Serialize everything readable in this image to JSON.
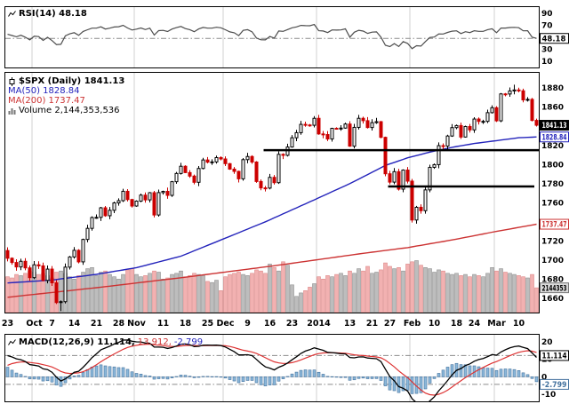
{
  "legends": {
    "rsi": "RSI(14) 48.18",
    "spx": "$SPX (Daily) 1841.13",
    "ma50": "MA(50) 1828.84",
    "ma200": "MA(200) 1737.47",
    "volume": "Volume 2,144,353,536",
    "macd_main": "MACD(12,26,9) 11.114,",
    "macd_signal": "13.912,",
    "macd_hist": "-2.799"
  },
  "icons": {
    "rsi_legend": "line-indicator-icon",
    "price_legend": "candlestick-icon",
    "volume_legend": "volume-bars-icon",
    "macd_legend": "line-indicator-icon"
  },
  "colors": {
    "up_candle": "#000000",
    "down_candle": "#cc0000",
    "ma50": "#2323bb",
    "ma200": "#cc3333",
    "vol_up": "#bdbdbd",
    "vol_up_edge": "#909090",
    "vol_down": "#f2b1b1",
    "vol_down_edge": "#dd8888",
    "hist_fill": "#8cb8da",
    "hist_stroke": "#44729e",
    "macd_line": "#000000",
    "signal_line": "#dd3333",
    "rsi_line": "#4d4d4d",
    "grid": "#d2d2d2",
    "dash": "#8c8c8c"
  },
  "axis_boxes": {
    "rsi": [
      {
        "value": 48.18,
        "label": "48.18",
        "style": "plain"
      }
    ],
    "price": [
      {
        "value": 1841.13,
        "label": "1841.13",
        "style": "dark"
      },
      {
        "value": 1828.84,
        "label": "1828.84",
        "style": "blue"
      },
      {
        "value": 1737.47,
        "label": "1737.47",
        "style": "red"
      }
    ],
    "volume": {
      "label": "2144353",
      "billions": 2.144,
      "style": "gray"
    },
    "macd": [
      {
        "value": 11.114,
        "label": "11.114",
        "style": "plain",
        "dy": -2
      },
      {
        "value": -2.799,
        "label": "-2.799",
        "style": "histblue",
        "dy": 3
      }
    ]
  },
  "chart_data": {
    "type": "candlestick",
    "symbol": "$SPX",
    "timeframe": "Daily",
    "panels": [
      "RSI(14)",
      "price+MA50+MA200+volume",
      "MACD(12,26,9)"
    ],
    "last_values": {
      "close": 1841.13,
      "ma50": 1828.84,
      "ma200": 1737.47,
      "volume": 2144353536,
      "rsi14": 48.18,
      "macd_line": 11.114,
      "macd_signal": 13.912,
      "macd_hist": -2.799
    },
    "price_ticks": [
      1880,
      1860,
      1820,
      1800,
      1780,
      1760,
      1720,
      1700,
      1680,
      1660
    ],
    "price_ylim": [
      1645,
      1896
    ],
    "rsi_ticks": [
      90,
      70,
      50,
      30,
      10
    ],
    "rsi_ylim": [
      0,
      100
    ],
    "macd_ticks": [
      20,
      10,
      0,
      -10
    ],
    "macd_ylim": [
      -14,
      24
    ],
    "x_ticks": [
      {
        "i": 0,
        "label": "23"
      },
      {
        "i": 6,
        "label": "Oct",
        "bold": true
      },
      {
        "i": 10,
        "label": "7"
      },
      {
        "i": 15,
        "label": "14"
      },
      {
        "i": 20,
        "label": "21"
      },
      {
        "i": 25,
        "label": "28"
      },
      {
        "i": 29,
        "label": "Nov",
        "bold": true
      },
      {
        "i": 35,
        "label": "11"
      },
      {
        "i": 40,
        "label": "18"
      },
      {
        "i": 45,
        "label": "25"
      },
      {
        "i": 49,
        "label": "Dec",
        "bold": true
      },
      {
        "i": 54,
        "label": "9"
      },
      {
        "i": 59,
        "label": "16"
      },
      {
        "i": 64,
        "label": "23"
      },
      {
        "i": 70,
        "label": "2014",
        "bold": true
      },
      {
        "i": 77,
        "label": "13"
      },
      {
        "i": 82,
        "label": "21"
      },
      {
        "i": 86,
        "label": "27"
      },
      {
        "i": 91,
        "label": "Feb",
        "bold": true
      },
      {
        "i": 96,
        "label": "10"
      },
      {
        "i": 101,
        "label": "18"
      },
      {
        "i": 105,
        "label": "24"
      },
      {
        "i": 110,
        "label": "Mar",
        "bold": true
      },
      {
        "i": 115,
        "label": "10"
      }
    ],
    "month_gridlines": [
      6,
      29,
      49,
      70,
      91,
      110
    ],
    "trendlines": [
      {
        "price": 1815,
        "i1": 58,
        "i2": 121
      },
      {
        "price": 1777,
        "i1": 86,
        "i2": 118.5
      }
    ],
    "warmup_closes": [
      1689.47,
      1694.16,
      1685.39,
      1661.32,
      1655.83,
      1646.06,
      1652.35,
      1642.8,
      1656.96,
      1663.5,
      1656.78,
      1630.48,
      1634.96,
      1638.17,
      1632.97,
      1639.77,
      1653.08,
      1655.08,
      1655.17,
      1671.71,
      1683.99,
      1689.13,
      1683.42,
      1687.99,
      1697.6,
      1704.76,
      1725.52,
      1722.34,
      1709.91
    ],
    "closes": [
      1701.84,
      1697.42,
      1692.77,
      1698.67,
      1691.75,
      1681.55,
      1695,
      1693.87,
      1678.66,
      1690.5,
      1676.12,
      1655.45,
      1656.4,
      1692.56,
      1703.2,
      1710.14,
      1698.06,
      1721.54,
      1733.15,
      1744.5,
      1744.66,
      1754.67,
      1746.38,
      1752.07,
      1759.77,
      1762.11,
      1771.95,
      1763.31,
      1756.54,
      1761.64,
      1767.93,
      1762.97,
      1770.49,
      1747.15,
      1770.61,
      1771.89,
      1767.69,
      1782,
      1790.62,
      1798.18,
      1791.53,
      1787.87,
      1781.37,
      1795.85,
      1804.76,
      1802.48,
      1802.75,
      1807.23,
      1805.81,
      1800.9,
      1795.15,
      1792.81,
      1785.03,
      1805.09,
      1808.37,
      1802.62,
      1782.22,
      1775.5,
      1775.32,
      1786.54,
      1781,
      1810.65,
      1809.6,
      1818.32,
      1827.99,
      1833.32,
      1842.02,
      1841.4,
      1841.07,
      1848.36,
      1831.98,
      1831.37,
      1826.77,
      1837.88,
      1837.49,
      1838.13,
      1842.37,
      1819.2,
      1838.88,
      1848.38,
      1845.89,
      1838.7,
      1843.8,
      1844.86,
      1828.46,
      1790.29,
      1781.56,
      1792.5,
      1774.2,
      1794.19,
      1782.59,
      1741.89,
      1755.2,
      1751.64,
      1773.43,
      1797.02,
      1799.84,
      1819.75,
      1819.26,
      1829.83,
      1838.63,
      1840.76,
      1828.75,
      1839.78,
      1836.25,
      1847.61,
      1845.12,
      1845.16,
      1854.29,
      1859.45,
      1845.73,
      1873.91,
      1873.81,
      1877.03,
      1878.04,
      1877.17,
      1867.63,
      1868.2,
      1846.16,
      1841.13
    ],
    "volumes_billions": [
      3.1,
      3.0,
      3.3,
      3.2,
      3.4,
      3.6,
      3.5,
      3.3,
      3.4,
      3.2,
      3.0,
      3.5,
      3.6,
      3.4,
      3.1,
      2.9,
      3.2,
      3.5,
      3.8,
      3.9,
      3.2,
      3.5,
      3.6,
      3.3,
      3.1,
      2.9,
      3.3,
      3.7,
      3.8,
      3.3,
      3.1,
      3.2,
      3.4,
      3.6,
      3.5,
      2.9,
      3.0,
      3.3,
      3.4,
      3.6,
      3.1,
      3.2,
      3.4,
      3.3,
      3.2,
      2.7,
      2.6,
      2.8,
      1.9,
      3.1,
      3.3,
      3.4,
      3.5,
      3.3,
      3.2,
      3.4,
      3.7,
      3.6,
      3.4,
      4.2,
      3.9,
      3.6,
      4.4,
      4.1,
      2.4,
      1.4,
      1.7,
      1.9,
      2.2,
      2.5,
      3.1,
      2.9,
      3.2,
      3.1,
      3.3,
      3.4,
      3.2,
      3.6,
      3.4,
      3.8,
      3.6,
      4.0,
      3.4,
      3.5,
      3.7,
      4.3,
      4.0,
      3.8,
      3.9,
      3.6,
      4.2,
      4.4,
      4.5,
      4.1,
      3.9,
      3.8,
      3.5,
      3.7,
      3.6,
      3.4,
      3.3,
      3.4,
      3.2,
      3.3,
      3.1,
      3.3,
      3.2,
      3.1,
      3.4,
      3.9,
      3.6,
      3.8,
      3.5,
      3.4,
      3.3,
      3.2,
      3.1,
      3.0,
      3.3,
      2.144
    ],
    "low_overrides": {
      "12": 1646.47,
      "91": 1739.27
    },
    "high_overrides": {
      "114": 1883.57
    },
    "ma50_keypoints": [
      [
        0,
        1676
      ],
      [
        10,
        1679
      ],
      [
        20,
        1685
      ],
      [
        29,
        1692
      ],
      [
        39,
        1704
      ],
      [
        48,
        1721
      ],
      [
        58,
        1740
      ],
      [
        69,
        1763
      ],
      [
        77,
        1780
      ],
      [
        85,
        1799
      ],
      [
        90,
        1807
      ],
      [
        95,
        1813
      ],
      [
        100,
        1818
      ],
      [
        105,
        1822
      ],
      [
        110,
        1825
      ],
      [
        115,
        1828
      ],
      [
        119,
        1828.84
      ]
    ],
    "ma200_keypoints": [
      [
        0,
        1661
      ],
      [
        20,
        1671
      ],
      [
        40,
        1682
      ],
      [
        60,
        1694
      ],
      [
        80,
        1707
      ],
      [
        90,
        1713
      ],
      [
        100,
        1721
      ],
      [
        110,
        1730
      ],
      [
        119,
        1737.47
      ]
    ]
  }
}
